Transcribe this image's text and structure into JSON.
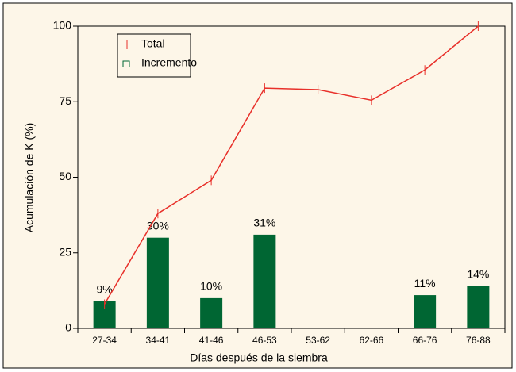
{
  "chart_data": {
    "type": "bar_line",
    "x_label": "Días después de la siembra",
    "y_label": "Acumulación de K (%)",
    "categories": [
      "27-34",
      "34-41",
      "41-46",
      "46-53",
      "53-62",
      "62-66",
      "66-76",
      "76-88"
    ],
    "series": [
      {
        "name": "Total",
        "color": "#e8302a",
        "kind": "line",
        "values": [
          8,
          38,
          49,
          79.5,
          79,
          75.5,
          85.5,
          100
        ]
      },
      {
        "name": "Incremento",
        "color": "#006633",
        "kind": "bar",
        "values": [
          9,
          30,
          10,
          31,
          null,
          null,
          11,
          14
        ],
        "value_labels": [
          "9%",
          "30%",
          "10%",
          "31%",
          null,
          null,
          "11%",
          "14%"
        ]
      }
    ],
    "ylim": [
      0,
      100
    ],
    "yticks": [
      0,
      25,
      50,
      75,
      100
    ],
    "legend": "upper left"
  }
}
